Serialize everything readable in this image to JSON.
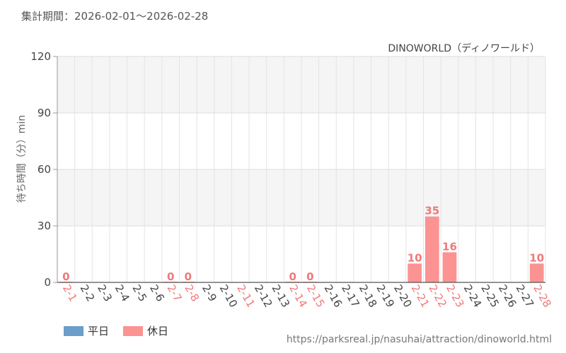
{
  "header": {
    "period": "集計期間：2026-02-01～2026-02-28"
  },
  "source_url": "https://parksreal.jp/nasuhai/attraction/dinoworld.html",
  "legend": {
    "weekday_label": "平日",
    "holiday_label": "休日",
    "weekday_color": "#6b9ec8",
    "holiday_color": "#fc9393"
  },
  "chart_data": {
    "type": "bar",
    "title": "DINOWORLD（ディノワールド）",
    "ylabel": "待ち時間（分）min",
    "xlabel": "",
    "ylim": [
      0,
      120
    ],
    "yticks": [
      0,
      30,
      60,
      90,
      120
    ],
    "grid": true,
    "legend_position": "bottom-left",
    "categories": [
      "2-1",
      "2-2",
      "2-3",
      "2-4",
      "2-5",
      "2-6",
      "2-7",
      "2-8",
      "2-9",
      "2-10",
      "2-11",
      "2-12",
      "2-13",
      "2-14",
      "2-15",
      "2-16",
      "2-17",
      "2-18",
      "2-19",
      "2-20",
      "2-21",
      "2-22",
      "2-23",
      "2-24",
      "2-25",
      "2-26",
      "2-27",
      "2-28"
    ],
    "series": [
      {
        "name": "休日",
        "color": "#fc9393",
        "values": [
          0,
          null,
          null,
          null,
          null,
          null,
          0,
          0,
          null,
          null,
          null,
          null,
          null,
          0,
          0,
          null,
          null,
          null,
          null,
          null,
          10,
          35,
          16,
          null,
          null,
          null,
          null,
          10
        ]
      }
    ],
    "holiday_categories": [
      "2-1",
      "2-7",
      "2-8",
      "2-11",
      "2-14",
      "2-15",
      "2-21",
      "2-22",
      "2-23",
      "2-28"
    ],
    "tick_colors": {
      "weekday": "#444444",
      "holiday": "#f07878"
    },
    "value_label_color": "#f07878"
  }
}
